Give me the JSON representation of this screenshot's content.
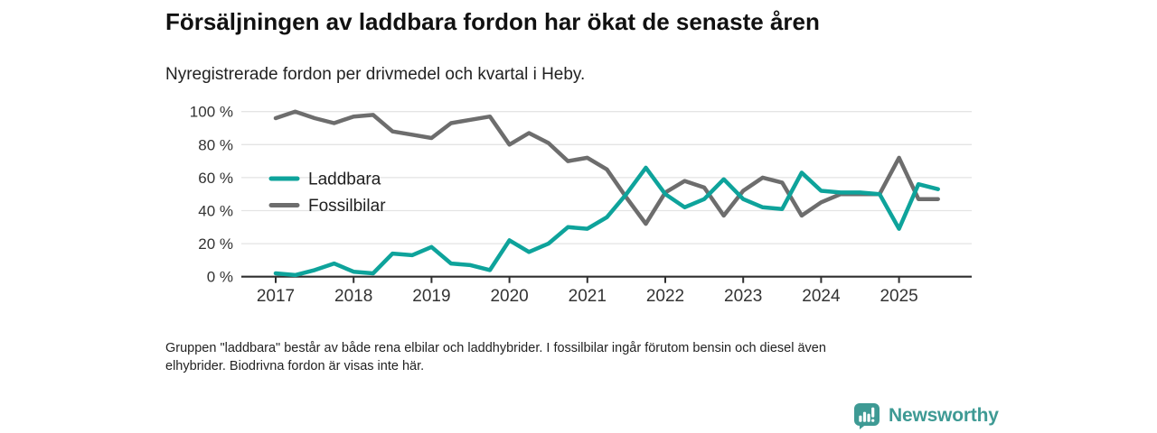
{
  "header": {
    "title": "Försäljningen av laddbara fordon har ökat de senaste åren",
    "subtitle": "Nyregistrerade fordon per drivmedel och kvartal i Heby."
  },
  "footnote": {
    "lines": [
      "Gruppen \"laddbara\" består av både rena elbilar och laddhybrider. I fossilbilar ingår förutom bensin och diesel även",
      "elhybrider. Biodrivna fordon är visas inte här."
    ]
  },
  "branding": {
    "name": "Newsworthy",
    "logo_icon": "bar-chart-speech-bubble-icon",
    "color": "#3e9a94"
  },
  "colors": {
    "laddbara": "#0ea39b",
    "fossilbilar": "#6d6d6d",
    "grid": "#e4e4e4",
    "axis": "#2f2f2f",
    "tick_label": "#333333",
    "legend_label": "#1f1f1f"
  },
  "chart_data": {
    "type": "line",
    "title": "Nyregistrerade fordon per drivmedel och kvartal i Heby",
    "x_unit": "quarter",
    "grid": true,
    "legend_position": "inside-left",
    "ylim": [
      0,
      100
    ],
    "yticks": [
      0,
      20,
      40,
      60,
      80,
      100
    ],
    "ytick_labels": [
      "0 %",
      "20 %",
      "40 %",
      "60 %",
      "80 %",
      "100 %"
    ],
    "xticks": [
      "2017",
      "2018",
      "2019",
      "2020",
      "2021",
      "2022",
      "2023",
      "2024",
      "2025"
    ],
    "categories": [
      "2017 Q1",
      "2017 Q2",
      "2017 Q3",
      "2017 Q4",
      "2018 Q1",
      "2018 Q2",
      "2018 Q3",
      "2018 Q4",
      "2019 Q1",
      "2019 Q2",
      "2019 Q3",
      "2019 Q4",
      "2020 Q1",
      "2020 Q2",
      "2020 Q3",
      "2020 Q4",
      "2021 Q1",
      "2021 Q2",
      "2021 Q3",
      "2021 Q4",
      "2022 Q1",
      "2022 Q2",
      "2022 Q3",
      "2022 Q4",
      "2023 Q1",
      "2023 Q2",
      "2023 Q3",
      "2023 Q4",
      "2024 Q1",
      "2024 Q2",
      "2024 Q3",
      "2024 Q4",
      "2025 Q1",
      "2025 Q2",
      "2025 Q3"
    ],
    "series": [
      {
        "name": "Fossilbilar",
        "color": "#6d6d6d",
        "values": [
          96,
          100,
          96,
          93,
          97,
          98,
          88,
          86,
          84,
          93,
          95,
          97,
          80,
          87,
          81,
          70,
          72,
          65,
          48,
          32,
          51,
          58,
          54,
          37,
          52,
          60,
          57,
          37,
          45,
          50,
          50,
          50,
          72,
          47,
          47
        ]
      },
      {
        "name": "Laddbara",
        "color": "#0ea39b",
        "values": [
          2,
          1,
          4,
          8,
          3,
          2,
          14,
          13,
          18,
          8,
          7,
          4,
          22,
          15,
          20,
          30,
          29,
          36,
          50,
          66,
          50,
          42,
          47,
          59,
          47,
          42,
          41,
          63,
          52,
          51,
          51,
          50,
          29,
          56,
          53
        ]
      }
    ],
    "legend_order": [
      "Laddbara",
      "Fossilbilar"
    ]
  }
}
